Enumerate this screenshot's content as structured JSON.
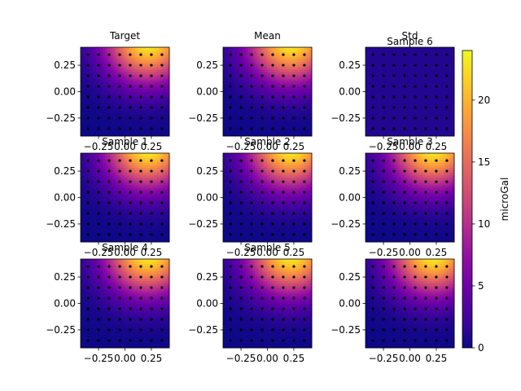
{
  "chart_data": {
    "type": "heatmap",
    "grid": {
      "rows": 3,
      "cols": 3
    },
    "panels": [
      {
        "title": "Target",
        "kind": "field"
      },
      {
        "title": "Mean",
        "kind": "field"
      },
      {
        "title": "Std",
        "kind": "std",
        "overlay_title": "Sample 6"
      },
      {
        "title": "Sample 1",
        "kind": "field"
      },
      {
        "title": "Sample 2",
        "kind": "field"
      },
      {
        "title": "Sample 3",
        "kind": "field"
      },
      {
        "title": "Sample 4",
        "kind": "field"
      },
      {
        "title": "Sample 5",
        "kind": "field"
      },
      {
        "title": "",
        "kind": "field"
      }
    ],
    "xlim": [
      -0.42,
      0.42
    ],
    "ylim": [
      -0.42,
      0.42
    ],
    "xticks": [
      -0.25,
      0.0,
      0.25
    ],
    "xtick_labels": [
      "−0.25",
      "0.00",
      "0.25"
    ],
    "yticks": [
      -0.25,
      0.0,
      0.25
    ],
    "ytick_labels": [
      "−0.25",
      "0.00",
      "0.25"
    ],
    "anomaly": {
      "x": 0.22,
      "y": 0.5,
      "peak": 24,
      "sigma": 0.28
    },
    "observation_points": {
      "x": [
        -0.35,
        -0.25,
        -0.15,
        -0.05,
        0.05,
        0.15,
        0.25,
        0.35
      ],
      "y": [
        -0.35,
        -0.25,
        -0.15,
        -0.05,
        0.05,
        0.15,
        0.25,
        0.35
      ]
    },
    "colorbar": {
      "label": "microGal",
      "min": 0,
      "max": 24,
      "ticks": [
        0,
        5,
        10,
        15,
        20
      ],
      "colormap": "plasma"
    },
    "std_level": 1.0
  }
}
